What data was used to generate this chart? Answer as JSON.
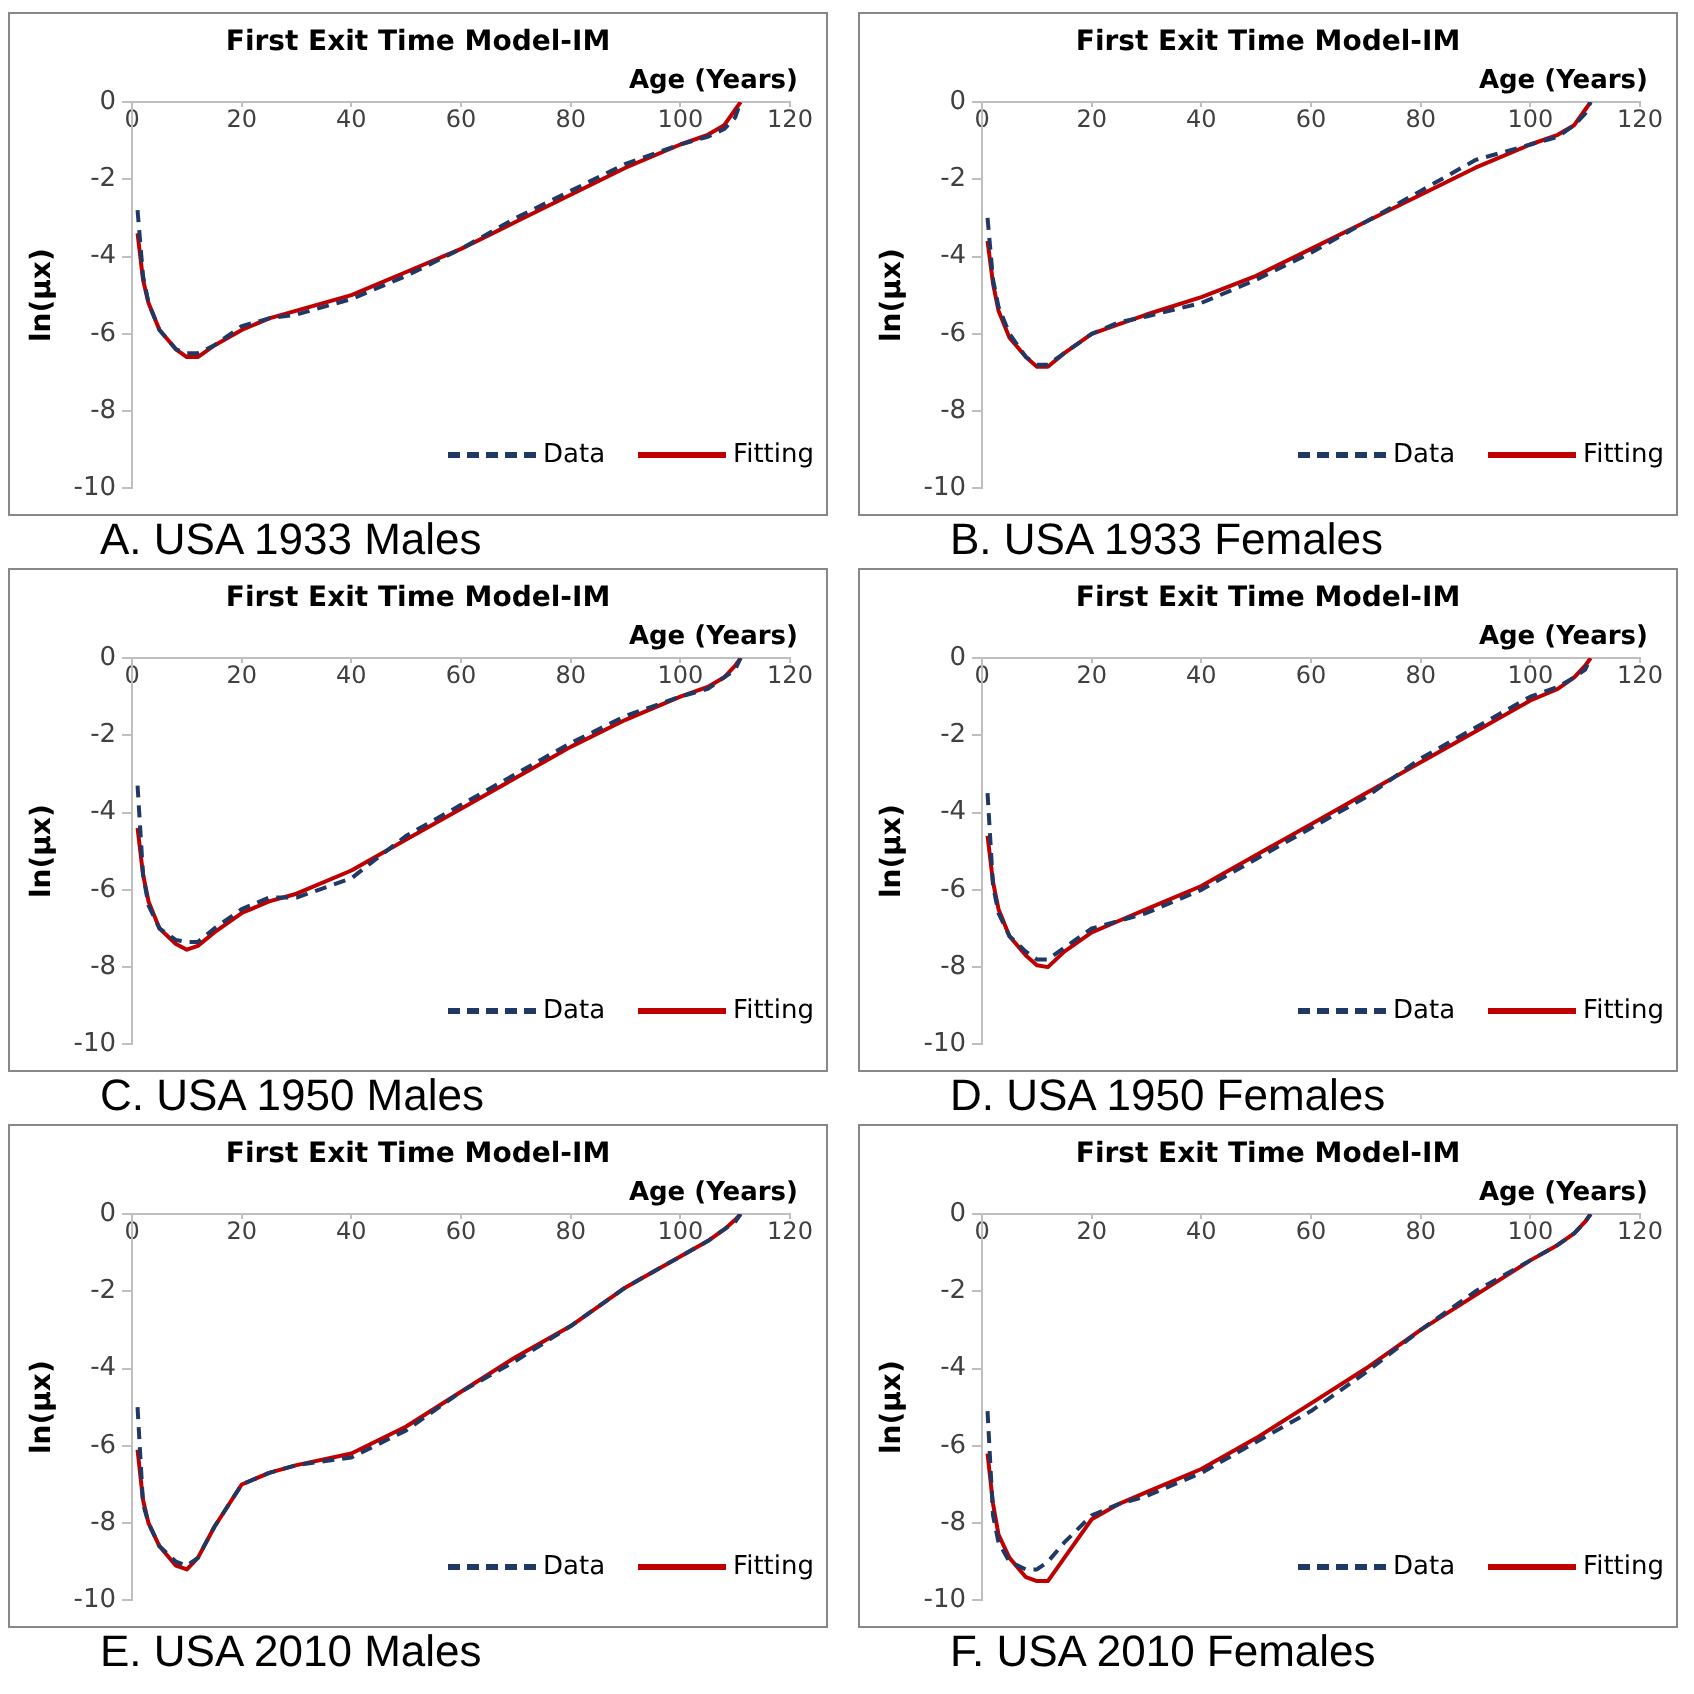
{
  "chart_data": [
    {
      "type": "line",
      "title": "First Exit Time Model-IM",
      "xlabel": "Age (Years)",
      "ylabel": "ln(μx)",
      "annotations": [
        "A.   USA 1933 Males"
      ],
      "x": [
        1,
        2,
        3,
        5,
        8,
        10,
        12,
        15,
        20,
        25,
        30,
        40,
        50,
        60,
        70,
        80,
        90,
        100,
        105,
        108,
        110,
        111
      ],
      "xlim": [
        0,
        120
      ],
      "xticks": [
        0,
        20,
        40,
        60,
        80,
        100,
        120
      ],
      "ylim": [
        -10,
        0
      ],
      "yticks": [
        -10,
        -8,
        -6,
        -4,
        -2,
        0
      ],
      "grid": false,
      "legend": "bottom right",
      "marker": "none",
      "series": [
        {
          "name": "Data",
          "color": "#1f3864",
          "line_style": "dashed",
          "values": [
            -2.8,
            -4.5,
            -5.2,
            -5.9,
            -6.4,
            -6.5,
            -6.5,
            -6.3,
            -5.8,
            -5.6,
            -5.5,
            -5.1,
            -4.5,
            -3.8,
            -3.0,
            -2.3,
            -1.6,
            -1.1,
            -0.9,
            -0.7,
            -0.4,
            0
          ]
        },
        {
          "name": "Fitting",
          "color": "#c00000",
          "line_style": "solid",
          "values": [
            -3.4,
            -4.6,
            -5.2,
            -5.9,
            -6.4,
            -6.6,
            -6.6,
            -6.3,
            -5.9,
            -5.6,
            -5.4,
            -5.0,
            -4.4,
            -3.8,
            -3.1,
            -2.4,
            -1.7,
            -1.1,
            -0.85,
            -0.6,
            -0.2,
            0
          ]
        }
      ]
    },
    {
      "type": "line",
      "title": "First Exit Time Model-IM",
      "xlabel": "Age (Years)",
      "ylabel": "ln(μx)",
      "annotations": [
        "B.   USA 1933 Females"
      ],
      "x": [
        1,
        2,
        3,
        5,
        8,
        10,
        12,
        15,
        20,
        25,
        30,
        40,
        50,
        60,
        70,
        80,
        90,
        100,
        105,
        108,
        110,
        111
      ],
      "xlim": [
        0,
        120
      ],
      "xticks": [
        0,
        20,
        40,
        60,
        80,
        100,
        120
      ],
      "ylim": [
        -10,
        0
      ],
      "yticks": [
        -10,
        -8,
        -6,
        -4,
        -2,
        0
      ],
      "grid": false,
      "legend": "bottom right",
      "marker": "none",
      "series": [
        {
          "name": "Data",
          "color": "#1f3864",
          "line_style": "dashed",
          "values": [
            -3.0,
            -4.6,
            -5.3,
            -6.0,
            -6.6,
            -6.8,
            -6.8,
            -6.5,
            -6.0,
            -5.7,
            -5.55,
            -5.2,
            -4.6,
            -3.9,
            -3.1,
            -2.3,
            -1.5,
            -1.1,
            -0.9,
            -0.6,
            -0.3,
            0
          ]
        },
        {
          "name": "Fitting",
          "color": "#c00000",
          "line_style": "solid",
          "values": [
            -3.6,
            -4.7,
            -5.4,
            -6.1,
            -6.6,
            -6.85,
            -6.85,
            -6.5,
            -6.0,
            -5.75,
            -5.5,
            -5.05,
            -4.5,
            -3.8,
            -3.1,
            -2.4,
            -1.7,
            -1.1,
            -0.85,
            -0.6,
            -0.2,
            0
          ]
        }
      ]
    },
    {
      "type": "line",
      "title": "First Exit Time Model-IM",
      "xlabel": "Age (Years)",
      "ylabel": "ln(μx)",
      "annotations": [
        "C.   USA 1950 Males"
      ],
      "x": [
        1,
        2,
        3,
        5,
        8,
        10,
        12,
        15,
        20,
        25,
        30,
        40,
        50,
        60,
        70,
        80,
        90,
        100,
        105,
        108,
        110,
        111
      ],
      "xlim": [
        0,
        120
      ],
      "xticks": [
        0,
        20,
        40,
        60,
        80,
        100,
        120
      ],
      "ylim": [
        -10,
        0
      ],
      "yticks": [
        -10,
        -8,
        -6,
        -4,
        -2,
        0
      ],
      "grid": false,
      "legend": "bottom right",
      "marker": "none",
      "series": [
        {
          "name": "Data",
          "color": "#1f3864",
          "line_style": "dashed",
          "values": [
            -3.3,
            -5.6,
            -6.4,
            -7.0,
            -7.3,
            -7.35,
            -7.35,
            -7.0,
            -6.5,
            -6.2,
            -6.2,
            -5.7,
            -4.6,
            -3.8,
            -3.0,
            -2.2,
            -1.5,
            -1.0,
            -0.8,
            -0.5,
            -0.3,
            0
          ]
        },
        {
          "name": "Fitting",
          "color": "#c00000",
          "line_style": "solid",
          "values": [
            -4.4,
            -5.6,
            -6.3,
            -7.0,
            -7.4,
            -7.55,
            -7.45,
            -7.1,
            -6.6,
            -6.3,
            -6.1,
            -5.5,
            -4.7,
            -3.9,
            -3.1,
            -2.3,
            -1.6,
            -1.0,
            -0.75,
            -0.5,
            -0.2,
            0
          ]
        }
      ]
    },
    {
      "type": "line",
      "title": "First Exit Time Model-IM",
      "xlabel": "Age (Years)",
      "ylabel": "ln(μx)",
      "annotations": [
        "D.   USA 1950 Females"
      ],
      "x": [
        1,
        2,
        3,
        5,
        8,
        10,
        12,
        15,
        20,
        25,
        30,
        40,
        50,
        60,
        70,
        80,
        90,
        100,
        105,
        108,
        110,
        111
      ],
      "xlim": [
        0,
        120
      ],
      "xticks": [
        0,
        20,
        40,
        60,
        80,
        100,
        120
      ],
      "ylim": [
        -10,
        0
      ],
      "yticks": [
        -10,
        -8,
        -6,
        -4,
        -2,
        0
      ],
      "grid": false,
      "legend": "bottom right",
      "marker": "none",
      "series": [
        {
          "name": "Data",
          "color": "#1f3864",
          "line_style": "dashed",
          "values": [
            -3.5,
            -5.9,
            -6.6,
            -7.2,
            -7.6,
            -7.8,
            -7.8,
            -7.5,
            -7.0,
            -6.8,
            -6.6,
            -6.0,
            -5.2,
            -4.4,
            -3.6,
            -2.6,
            -1.8,
            -1.0,
            -0.75,
            -0.5,
            -0.3,
            0
          ]
        },
        {
          "name": "Fitting",
          "color": "#c00000",
          "line_style": "solid",
          "values": [
            -4.6,
            -5.8,
            -6.5,
            -7.2,
            -7.7,
            -7.95,
            -8.0,
            -7.6,
            -7.1,
            -6.8,
            -6.5,
            -5.9,
            -5.1,
            -4.3,
            -3.5,
            -2.7,
            -1.9,
            -1.1,
            -0.8,
            -0.5,
            -0.2,
            0
          ]
        }
      ]
    },
    {
      "type": "line",
      "title": "First Exit Time Model-IM",
      "xlabel": "Age (Years)",
      "ylabel": "ln(μx)",
      "annotations": [
        "E.   USA 2010 Males"
      ],
      "x": [
        1,
        2,
        3,
        5,
        8,
        10,
        12,
        15,
        20,
        25,
        30,
        40,
        50,
        60,
        70,
        80,
        90,
        100,
        105,
        108,
        110,
        111
      ],
      "xlim": [
        0,
        120
      ],
      "xticks": [
        0,
        20,
        40,
        60,
        80,
        100,
        120
      ],
      "ylim": [
        -10,
        0
      ],
      "yticks": [
        -10,
        -8,
        -6,
        -4,
        -2,
        0
      ],
      "grid": false,
      "legend": "bottom right",
      "marker": "none",
      "series": [
        {
          "name": "Data",
          "color": "#1f3864",
          "line_style": "dashed",
          "values": [
            -5.0,
            -7.5,
            -8.0,
            -8.6,
            -9.0,
            -9.1,
            -8.9,
            -8.1,
            -7.0,
            -6.7,
            -6.5,
            -6.3,
            -5.6,
            -4.6,
            -3.8,
            -2.9,
            -1.9,
            -1.1,
            -0.7,
            -0.4,
            -0.2,
            0
          ]
        },
        {
          "name": "Fitting",
          "color": "#c00000",
          "line_style": "solid",
          "values": [
            -6.1,
            -7.4,
            -8.0,
            -8.6,
            -9.1,
            -9.2,
            -8.9,
            -8.1,
            -7.0,
            -6.7,
            -6.5,
            -6.2,
            -5.5,
            -4.6,
            -3.7,
            -2.9,
            -1.9,
            -1.1,
            -0.7,
            -0.4,
            -0.15,
            0
          ]
        }
      ]
    },
    {
      "type": "line",
      "title": "First Exit Time Model-IM",
      "xlabel": "Age (Years)",
      "ylabel": "ln(μx)",
      "annotations": [
        "F.   USA 2010 Females"
      ],
      "x": [
        1,
        2,
        3,
        5,
        8,
        10,
        12,
        15,
        20,
        25,
        30,
        40,
        50,
        60,
        70,
        80,
        90,
        100,
        105,
        108,
        110,
        111
      ],
      "xlim": [
        0,
        120
      ],
      "xticks": [
        0,
        20,
        40,
        60,
        80,
        100,
        120
      ],
      "ylim": [
        -10,
        0
      ],
      "yticks": [
        -10,
        -8,
        -6,
        -4,
        -2,
        0
      ],
      "grid": false,
      "legend": "bottom right",
      "marker": "none",
      "series": [
        {
          "name": "Data",
          "color": "#1f3864",
          "line_style": "dashed",
          "values": [
            -5.1,
            -7.8,
            -8.5,
            -9.0,
            -9.2,
            -9.2,
            -9.0,
            -8.5,
            -7.8,
            -7.5,
            -7.3,
            -6.7,
            -5.9,
            -5.1,
            -4.1,
            -3.0,
            -2.0,
            -1.2,
            -0.8,
            -0.5,
            -0.2,
            0
          ]
        },
        {
          "name": "Fitting",
          "color": "#c00000",
          "line_style": "solid",
          "values": [
            -6.2,
            -7.5,
            -8.3,
            -8.9,
            -9.4,
            -9.5,
            -9.5,
            -8.9,
            -7.9,
            -7.5,
            -7.2,
            -6.6,
            -5.8,
            -4.9,
            -4.0,
            -3.0,
            -2.1,
            -1.2,
            -0.8,
            -0.5,
            -0.2,
            0
          ]
        }
      ]
    }
  ]
}
